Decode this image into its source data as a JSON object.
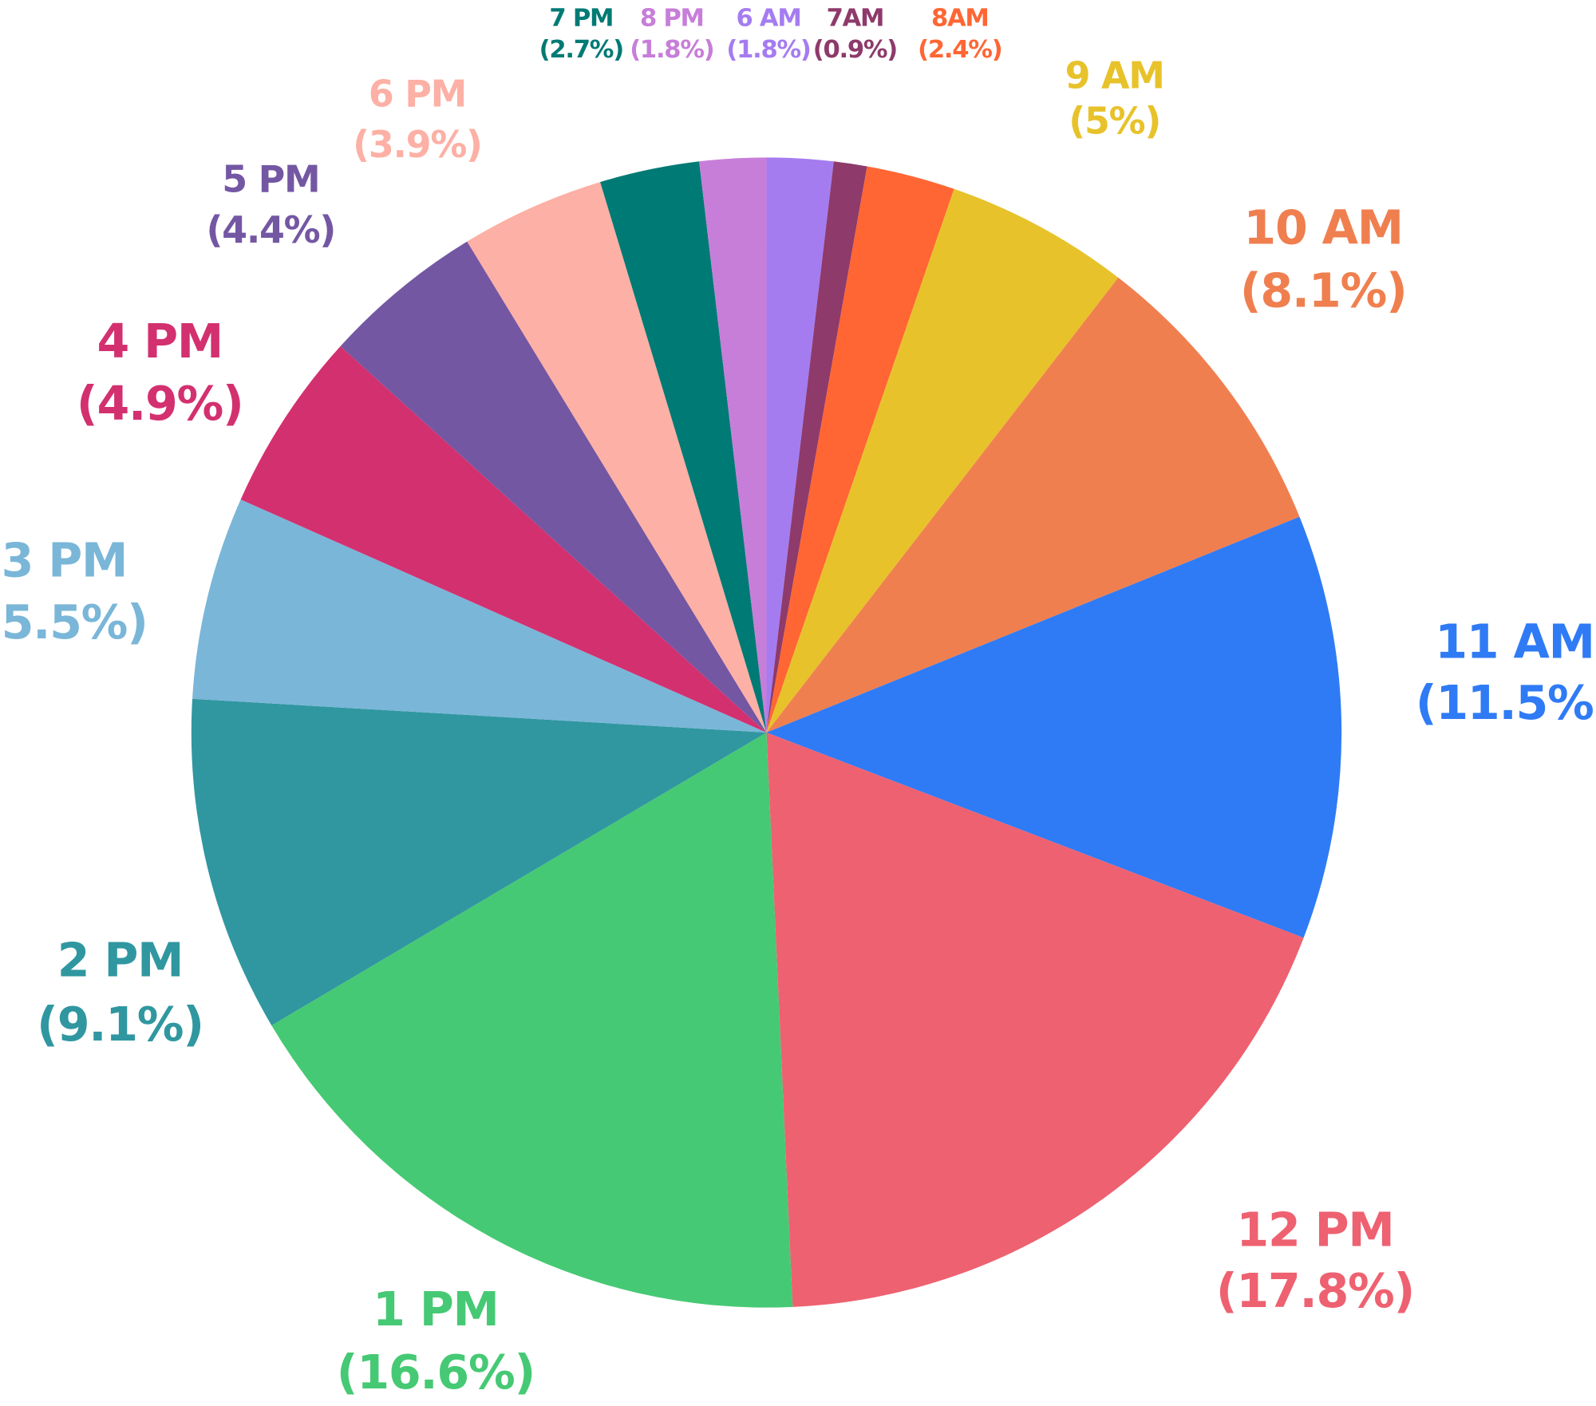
{
  "chart_data": {
    "type": "pie",
    "categories": [
      "6 AM",
      "7AM",
      "8AM",
      "9 AM",
      "10 AM",
      "11 AM",
      "12 PM",
      "1 PM",
      "2 PM",
      "3 PM",
      "4 PM",
      "5 PM",
      "6 PM",
      "7 PM",
      "8 PM"
    ],
    "values": [
      1.8,
      0.9,
      2.4,
      5,
      8.1,
      11.5,
      17.8,
      16.6,
      9.1,
      5.5,
      4.9,
      4.4,
      3.9,
      2.7,
      1.8
    ],
    "value_labels": [
      "(1.8%)",
      "(0.9%)",
      "(2.4%)",
      "(5%)",
      "(8.1%)",
      "(11.5%)",
      "(17.8%)",
      "(16.6%)",
      "(9.1%)",
      "(5.5%)",
      "(4.9%)",
      "(4.4%)",
      "(3.9%)",
      "(2.7%)",
      "(1.8%)"
    ],
    "colors": [
      "#a57cf0",
      "#8e3a6b",
      "#ff6633",
      "#e8c22a",
      "#f07f4f",
      "#2f7bf5",
      "#ee6170",
      "#46c974",
      "#3097a0",
      "#7ab6d8",
      "#d33070",
      "#7457a3",
      "#fdb0a5",
      "#007a74",
      "#c77ed9"
    ]
  }
}
